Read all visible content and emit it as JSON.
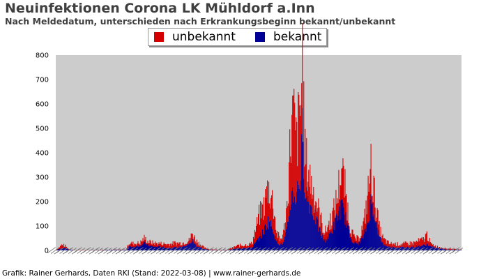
{
  "chart_data": {
    "type": "bar",
    "stacked": true,
    "title": "Neuinfektionen Corona LK Mühldorf a.Inn",
    "subtitle": "Nach Meldedatum, unterschieden nach Erkrankungsbeginn bekannt/unbekannt",
    "ylim": [
      0,
      800
    ],
    "yticks": [
      0,
      100,
      200,
      300,
      400,
      500,
      600,
      700,
      800
    ],
    "grid": false,
    "legend_position": "top",
    "colors": {
      "unbekannt": "#d40000",
      "bekannt": "#000096",
      "plot_bg": "#cccccc"
    },
    "series": [
      {
        "name": "unbekannt",
        "color": "#d40000"
      },
      {
        "name": "bekannt",
        "color": "#000096"
      }
    ],
    "num_days": 580,
    "x_tick_labels_legible": false,
    "profile": [
      [
        0,
        0,
        2
      ],
      [
        4,
        6,
        12
      ],
      [
        8,
        10,
        22
      ],
      [
        12,
        10,
        20
      ],
      [
        18,
        4,
        6
      ],
      [
        24,
        1,
        2
      ],
      [
        30,
        0,
        1
      ],
      [
        40,
        0,
        1
      ],
      [
        60,
        1,
        2
      ],
      [
        80,
        2,
        3
      ],
      [
        100,
        2,
        3
      ],
      [
        104,
        15,
        30
      ],
      [
        110,
        15,
        28
      ],
      [
        120,
        20,
        30
      ],
      [
        126,
        30,
        50
      ],
      [
        132,
        20,
        35
      ],
      [
        140,
        15,
        30
      ],
      [
        150,
        15,
        28
      ],
      [
        160,
        10,
        25
      ],
      [
        170,
        12,
        30
      ],
      [
        180,
        15,
        30
      ],
      [
        190,
        25,
        40
      ],
      [
        195,
        40,
        70
      ],
      [
        200,
        20,
        40
      ],
      [
        206,
        12,
        25
      ],
      [
        212,
        5,
        10
      ],
      [
        220,
        2,
        5
      ],
      [
        230,
        1,
        3
      ],
      [
        245,
        1,
        2
      ],
      [
        260,
        8,
        20
      ],
      [
        270,
        10,
        22
      ],
      [
        280,
        12,
        28
      ],
      [
        290,
        50,
        140
      ],
      [
        297,
        80,
        180
      ],
      [
        303,
        120,
        260
      ],
      [
        310,
        90,
        200
      ],
      [
        315,
        40,
        80
      ],
      [
        320,
        25,
        40
      ],
      [
        325,
        30,
        70
      ],
      [
        330,
        80,
        180
      ],
      [
        335,
        200,
        450
      ],
      [
        339,
        240,
        560
      ],
      [
        343,
        220,
        440
      ],
      [
        347,
        280,
        520
      ],
      [
        350,
        300,
        600
      ],
      [
        352,
        480,
        800
      ],
      [
        354,
        350,
        520
      ],
      [
        357,
        240,
        360
      ],
      [
        361,
        200,
        320
      ],
      [
        366,
        170,
        260
      ],
      [
        372,
        120,
        200
      ],
      [
        378,
        70,
        130
      ],
      [
        384,
        40,
        70
      ],
      [
        390,
        60,
        110
      ],
      [
        396,
        90,
        150
      ],
      [
        402,
        140,
        220
      ],
      [
        408,
        180,
        340
      ],
      [
        414,
        130,
        230
      ],
      [
        420,
        60,
        100
      ],
      [
        426,
        30,
        50
      ],
      [
        432,
        28,
        45
      ],
      [
        440,
        60,
        110
      ],
      [
        446,
        120,
        240
      ],
      [
        450,
        200,
        340
      ],
      [
        454,
        170,
        250
      ],
      [
        458,
        100,
        160
      ],
      [
        462,
        60,
        90
      ],
      [
        468,
        25,
        45
      ],
      [
        476,
        15,
        28
      ],
      [
        490,
        12,
        25
      ],
      [
        510,
        15,
        30
      ],
      [
        525,
        20,
        45
      ],
      [
        530,
        25,
        65
      ],
      [
        536,
        15,
        25
      ],
      [
        545,
        8,
        15
      ],
      [
        560,
        3,
        7
      ],
      [
        579,
        2,
        3
      ]
    ]
  },
  "footer": {
    "text": "Grafik: Rainer Gerhards, Daten RKI (Stand: 2022-03-08) | www.rainer-gerhards.de"
  }
}
